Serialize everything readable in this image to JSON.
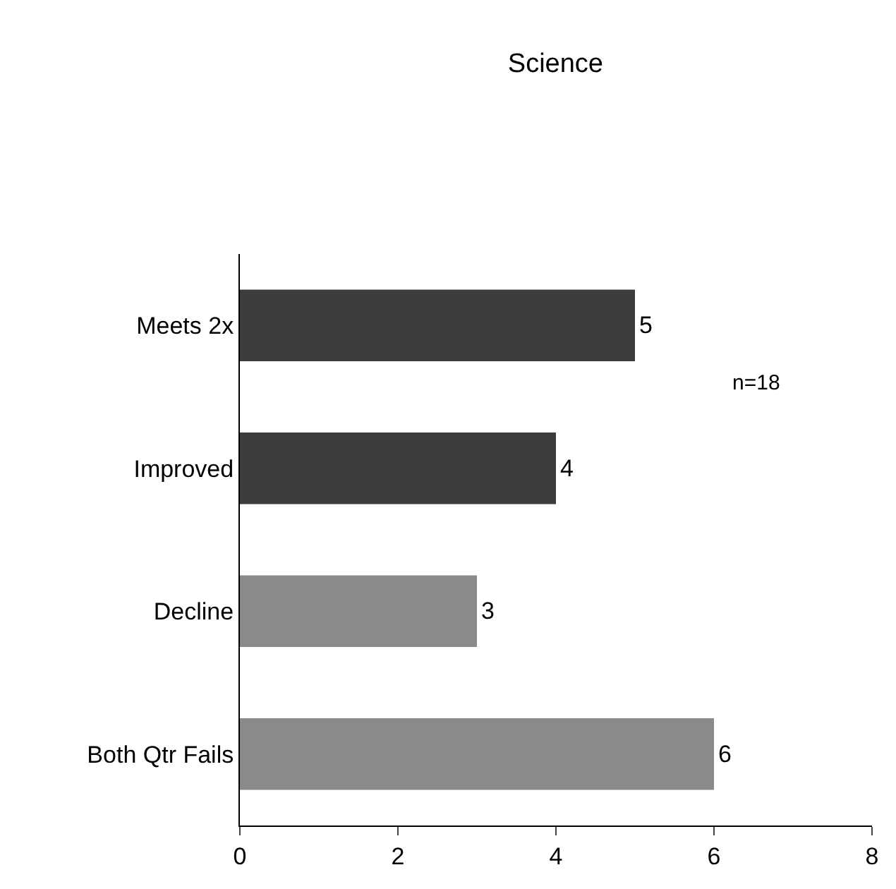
{
  "chart_data": {
    "type": "bar",
    "title": "Science",
    "orientation": "horizontal",
    "categories": [
      "Meets 2x",
      "Improved",
      "Decline",
      "Both Qtr Fails"
    ],
    "values": [
      5,
      4,
      3,
      6
    ],
    "colors": [
      "#3c3c3c",
      "#3c3c3c",
      "#8a8a8a",
      "#8a8a8a"
    ],
    "xlim": [
      0,
      8
    ],
    "xticks": [
      0,
      2,
      4,
      6,
      8
    ],
    "data_labels": true,
    "grid": false,
    "legend": false,
    "annotations": [
      "n=18"
    ]
  }
}
